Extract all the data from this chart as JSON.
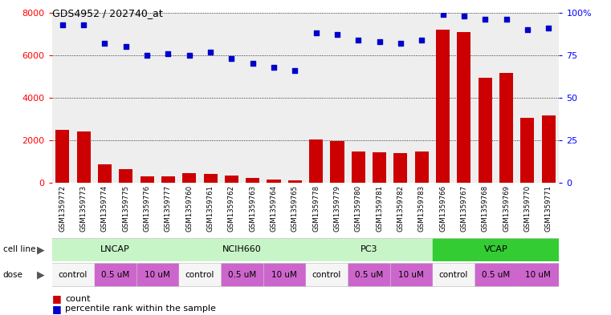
{
  "title": "GDS4952 / 202740_at",
  "samples": [
    "GSM1359772",
    "GSM1359773",
    "GSM1359774",
    "GSM1359775",
    "GSM1359776",
    "GSM1359777",
    "GSM1359760",
    "GSM1359761",
    "GSM1359762",
    "GSM1359763",
    "GSM1359764",
    "GSM1359765",
    "GSM1359778",
    "GSM1359779",
    "GSM1359780",
    "GSM1359781",
    "GSM1359782",
    "GSM1359783",
    "GSM1359766",
    "GSM1359767",
    "GSM1359768",
    "GSM1359769",
    "GSM1359770",
    "GSM1359771"
  ],
  "counts": [
    2500,
    2400,
    850,
    650,
    300,
    300,
    450,
    420,
    350,
    230,
    150,
    120,
    2050,
    1950,
    1450,
    1430,
    1380,
    1450,
    7200,
    7100,
    4950,
    5150,
    3050,
    3150
  ],
  "percentile_ranks": [
    93,
    93,
    82,
    80,
    75,
    76,
    75,
    77,
    73,
    70,
    68,
    66,
    88,
    87,
    84,
    83,
    82,
    84,
    99,
    98,
    96,
    96,
    90,
    91
  ],
  "cell_lines": [
    {
      "name": "LNCAP",
      "start": 0,
      "end": 6,
      "color": "#c8f5c8"
    },
    {
      "name": "NCIH660",
      "start": 6,
      "end": 12,
      "color": "#c8f5c8"
    },
    {
      "name": "PC3",
      "start": 12,
      "end": 18,
      "color": "#c8f5c8"
    },
    {
      "name": "VCAP",
      "start": 18,
      "end": 24,
      "color": "#33cc33"
    }
  ],
  "doses": [
    {
      "name": "control",
      "start": 0,
      "end": 2,
      "color": "#f5f5f5"
    },
    {
      "name": "0.5 uM",
      "start": 2,
      "end": 4,
      "color": "#cc66cc"
    },
    {
      "name": "10 uM",
      "start": 4,
      "end": 6,
      "color": "#cc66cc"
    },
    {
      "name": "control",
      "start": 6,
      "end": 8,
      "color": "#f5f5f5"
    },
    {
      "name": "0.5 uM",
      "start": 8,
      "end": 10,
      "color": "#cc66cc"
    },
    {
      "name": "10 uM",
      "start": 10,
      "end": 12,
      "color": "#cc66cc"
    },
    {
      "name": "control",
      "start": 12,
      "end": 14,
      "color": "#f5f5f5"
    },
    {
      "name": "0.5 uM",
      "start": 14,
      "end": 16,
      "color": "#cc66cc"
    },
    {
      "name": "10 uM",
      "start": 16,
      "end": 18,
      "color": "#cc66cc"
    },
    {
      "name": "control",
      "start": 18,
      "end": 20,
      "color": "#f5f5f5"
    },
    {
      "name": "0.5 uM",
      "start": 20,
      "end": 22,
      "color": "#cc66cc"
    },
    {
      "name": "10 uM",
      "start": 22,
      "end": 24,
      "color": "#cc66cc"
    }
  ],
  "bar_color": "#CC0000",
  "dot_color": "#0000CC",
  "ylim_left": [
    0,
    8000
  ],
  "ylim_right": [
    0,
    100
  ],
  "yticks_left": [
    0,
    2000,
    4000,
    6000,
    8000
  ],
  "yticks_right": [
    0,
    25,
    50,
    75,
    100
  ],
  "ytick_labels_right": [
    "0",
    "25",
    "50",
    "75",
    "100%"
  ],
  "bg_color": "#ffffff",
  "plot_bg_color": "#eeeeee",
  "grid_color": "#000000",
  "label_row_bg": "#cccccc"
}
